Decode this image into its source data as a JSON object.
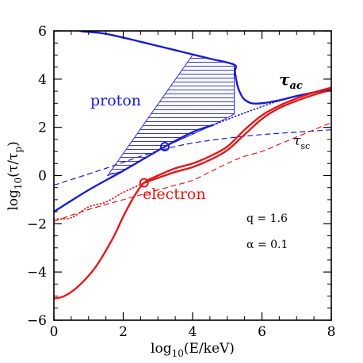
{
  "chart_data": {
    "type": "line",
    "xlim": [
      0,
      8
    ],
    "ylim": [
      -6,
      6
    ],
    "x_ticks": [
      "0",
      "2",
      "4",
      "6",
      "8"
    ],
    "y_ticks": [
      "−6",
      "−4",
      "−2",
      "0",
      "2",
      "4",
      "6"
    ],
    "xlabel_func": "log",
    "xlabel_sub": "10",
    "xlabel_arg": "(E/keV)",
    "ylabel_func": "log",
    "ylabel_sub": "10",
    "ylabel_arg_open": "(τ/τ",
    "ylabel_arg_sub": "p",
    "ylabel_arg_close": ")",
    "colors": {
      "proton": "#1a1ad6",
      "electron": "#e01a1a",
      "axis": "#000000"
    },
    "annotations": {
      "proton": "proton",
      "electron": "electron",
      "tau_ac_main": "τ",
      "tau_ac_sub": "ac",
      "tau_sc_main": "τ",
      "tau_sc_sub": "sc",
      "q_text": "q = 1.6",
      "alpha_text": "α = 0.1"
    },
    "series": [
      {
        "color": "proton",
        "style": "solid",
        "width": 2.4,
        "x": [
          0.8,
          1.5,
          2.5,
          3.5,
          4.5,
          5.2,
          5.22,
          5.3,
          5.4,
          5.5,
          5.7,
          6.0,
          6.5,
          7.0,
          7.5,
          8.0
        ],
        "y": [
          5.98,
          5.88,
          5.55,
          5.2,
          4.85,
          4.6,
          4.3,
          3.7,
          3.35,
          3.15,
          3.0,
          3.0,
          3.12,
          3.3,
          3.45,
          3.6
        ]
      },
      {
        "color": "proton",
        "style": "dotted",
        "width": 1.6,
        "x": [
          0.0,
          0.4,
          0.8
        ],
        "y": [
          6.15,
          6.05,
          5.98
        ]
      },
      {
        "color": "proton",
        "style": "solid",
        "width": 2.4,
        "x": [
          0.0,
          1.0,
          2.0,
          3.2,
          4.0,
          4.6
        ],
        "y": [
          -1.5,
          -0.6,
          0.2,
          1.2,
          1.8,
          2.1
        ]
      },
      {
        "color": "proton",
        "style": "dotted",
        "width": 1.6,
        "x": [
          4.6,
          5.5,
          6.5,
          7.5,
          8.0
        ],
        "y": [
          2.1,
          2.6,
          3.1,
          3.45,
          3.6
        ]
      },
      {
        "color": "proton",
        "style": "dashed",
        "width": 1.2,
        "x": [
          0.0,
          1.5,
          2.5,
          3.2,
          4.0,
          5.0,
          6.0,
          7.0,
          8.0
        ],
        "y": [
          -0.4,
          0.3,
          0.8,
          1.1,
          1.35,
          1.55,
          1.7,
          1.8,
          1.9
        ]
      },
      {
        "color": "electron",
        "style": "solid",
        "width": 2.4,
        "x": [
          0.0,
          0.3,
          0.7,
          1.2,
          1.7,
          2.0,
          2.3,
          2.6,
          3.0,
          3.5,
          4.0,
          4.5,
          5.0,
          5.5,
          6.0,
          6.5,
          7.0,
          7.5,
          8.0
        ],
        "y": [
          -5.1,
          -5.0,
          -4.6,
          -3.8,
          -2.6,
          -1.7,
          -0.9,
          -0.3,
          0.0,
          0.3,
          0.5,
          0.8,
          1.2,
          1.9,
          2.5,
          2.9,
          3.2,
          3.45,
          3.65
        ]
      },
      {
        "color": "electron",
        "style": "solid",
        "width": 2.4,
        "x": [
          2.6,
          3.0,
          3.5,
          4.0,
          4.5,
          5.0,
          5.5,
          6.0,
          6.5,
          7.0,
          7.5,
          8.0
        ],
        "y": [
          -0.3,
          -0.1,
          0.15,
          0.35,
          0.65,
          1.05,
          1.7,
          2.35,
          2.8,
          3.1,
          3.35,
          3.55
        ]
      },
      {
        "color": "electron",
        "style": "dotted",
        "width": 1.6,
        "x": [
          0.0,
          0.5,
          1.0,
          1.5,
          2.0,
          2.6
        ],
        "y": [
          -1.8,
          -1.75,
          -1.3,
          -1.1,
          -0.7,
          -0.3
        ]
      },
      {
        "color": "electron",
        "style": "dashed",
        "width": 1.2,
        "x": [
          0.0,
          0.8,
          1.5,
          2.0,
          2.5,
          3.0,
          3.5,
          4.0,
          4.5,
          5.0,
          5.5,
          6.0,
          6.5,
          7.0,
          7.5,
          8.0
        ],
        "y": [
          -1.9,
          -1.5,
          -1.2,
          -1.0,
          -0.8,
          -0.6,
          -0.4,
          -0.2,
          0.15,
          0.5,
          0.8,
          1.0,
          1.3,
          1.6,
          1.9,
          2.2
        ]
      }
    ],
    "hatch_region": {
      "color": "proton",
      "x": [
        1.55,
        4.0,
        5.2,
        5.2,
        4.6,
        3.2,
        2.0,
        1.55
      ],
      "y": [
        0.0,
        5.0,
        4.6,
        2.55,
        2.1,
        1.2,
        0.2,
        0.0
      ]
    },
    "markers": [
      {
        "color": "proton",
        "x": 3.2,
        "y": 1.2
      },
      {
        "color": "electron",
        "x": 2.6,
        "y": -0.3
      }
    ]
  }
}
